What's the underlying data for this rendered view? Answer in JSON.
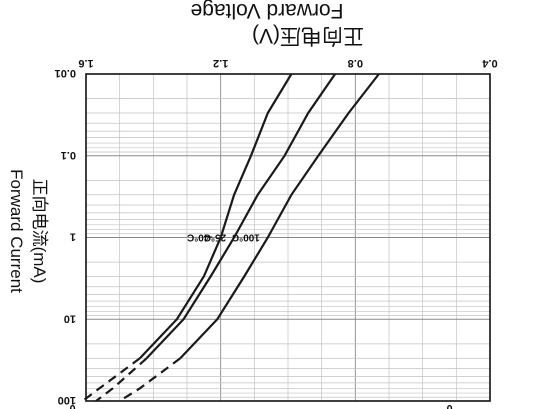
{
  "chart_data": {
    "type": "line",
    "title": "Forward Voltage",
    "subtitle": "正向电压(V)",
    "ylabel": "Forward Current",
    "ylabel_cn": "正向电流(mA)",
    "x_ticks": [
      "0.4",
      "0.8",
      "1.2",
      "1.6"
    ],
    "y_ticks": [
      "100",
      "10",
      "1",
      "0.1",
      "0.01"
    ],
    "xlim": [
      0.4,
      1.6
    ],
    "ylim": [
      0.01,
      100
    ],
    "yscale": "log",
    "grid": true,
    "orientation": "rotated 180 degrees",
    "series": [
      {
        "name": "100°C",
        "points": [
          [
            0.73,
            0.01
          ],
          [
            0.82,
            0.03
          ],
          [
            0.91,
            0.1
          ],
          [
            0.99,
            0.3
          ],
          [
            1.06,
            1.0
          ],
          [
            1.13,
            3.0
          ],
          [
            1.21,
            10.0
          ],
          [
            1.32,
            30.0
          ],
          [
            1.44,
            70.0
          ],
          [
            1.5,
            100.0
          ]
        ],
        "dashed_from_y": 60
      },
      {
        "name": "25°C",
        "points": [
          [
            0.86,
            0.01
          ],
          [
            0.94,
            0.03
          ],
          [
            1.01,
            0.1
          ],
          [
            1.09,
            0.3
          ],
          [
            1.16,
            1.0
          ],
          [
            1.23,
            3.0
          ],
          [
            1.31,
            10.0
          ],
          [
            1.42,
            30.0
          ],
          [
            1.52,
            70.0
          ],
          [
            1.57,
            100.0
          ]
        ],
        "dashed_from_y": 60
      },
      {
        "name": "-40°C",
        "points": [
          [
            0.99,
            0.01
          ],
          [
            1.06,
            0.03
          ],
          [
            1.11,
            0.1
          ],
          [
            1.16,
            0.3
          ],
          [
            1.2,
            1.0
          ],
          [
            1.25,
            3.0
          ],
          [
            1.33,
            10.0
          ],
          [
            1.44,
            30.0
          ],
          [
            1.56,
            70.0
          ],
          [
            1.61,
            100.0
          ]
        ],
        "dashed_from_y": 60
      }
    ],
    "bottom_edge_labels": [
      "0",
      "0"
    ]
  }
}
